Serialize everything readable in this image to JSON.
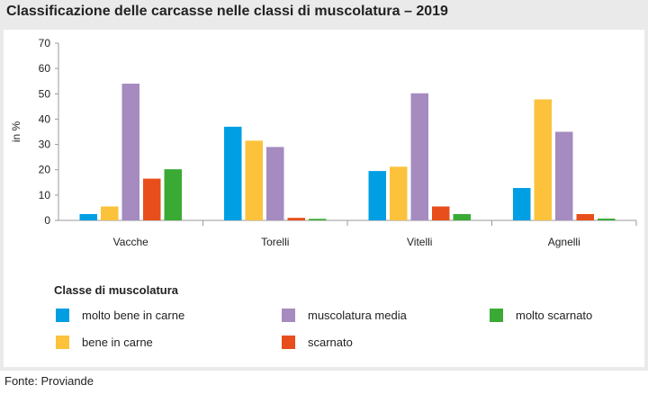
{
  "title": "Classificazione delle carcasse nelle classi di muscolatura – 2019",
  "source": "Fonte: Proviande",
  "legend_title": "Classe di muscolatura",
  "chart_data": {
    "type": "bar",
    "title": "Classificazione delle carcasse nelle classi di muscolatura – 2019",
    "ylabel": "in %",
    "xlabel": "",
    "ylim": [
      0,
      70
    ],
    "yticks": [
      0,
      10,
      20,
      30,
      40,
      50,
      60,
      70
    ],
    "categories": [
      "Vacche",
      "Torelli",
      "Vitelli",
      "Agnelli"
    ],
    "series": [
      {
        "name": "molto bene in carne",
        "color": "#009fe3",
        "values": [
          2.5,
          37,
          19.5,
          12.8
        ]
      },
      {
        "name": "bene in carne",
        "color": "#fcc23c",
        "values": [
          5.5,
          31.5,
          21.2,
          47.8
        ]
      },
      {
        "name": "muscolatura media",
        "color": "#a58bc0",
        "values": [
          54,
          29,
          50.2,
          35
        ]
      },
      {
        "name": "scarnato",
        "color": "#e84e1b",
        "values": [
          16.5,
          1.0,
          5.5,
          2.5
        ]
      },
      {
        "name": "molto scarnato",
        "color": "#3aaa35",
        "values": [
          20.2,
          0.6,
          2.5,
          0.7
        ]
      }
    ],
    "grid": false,
    "legend_position": "bottom"
  }
}
